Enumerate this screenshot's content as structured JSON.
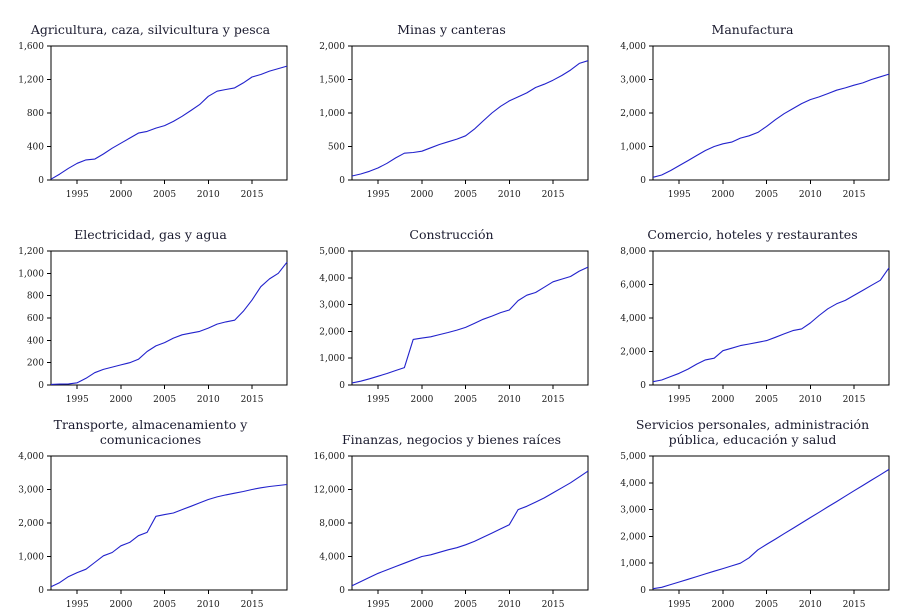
{
  "style": {
    "line_color": "#2222cc",
    "axis_color": "#000000",
    "tick_label_color": "#1a1a1a",
    "background": "#ffffff"
  },
  "chart_data": [
    {
      "type": "line",
      "title": "Agricultura, caza, silvicultura y pesca",
      "x": [
        1992,
        1993,
        1994,
        1995,
        1996,
        1997,
        1998,
        1999,
        2000,
        2001,
        2002,
        2003,
        2004,
        2005,
        2006,
        2007,
        2008,
        2009,
        2010,
        2011,
        2012,
        2013,
        2014,
        2015,
        2016,
        2017,
        2018,
        2019
      ],
      "values": [
        10,
        70,
        140,
        200,
        240,
        250,
        310,
        380,
        440,
        500,
        560,
        580,
        620,
        650,
        700,
        760,
        830,
        900,
        1000,
        1060,
        1080,
        1100,
        1160,
        1230,
        1260,
        1300,
        1330,
        1360
      ],
      "ylim": [
        0,
        1600
      ],
      "yticks": [
        0,
        400,
        800,
        1200,
        1600
      ],
      "xticks": [
        1995,
        2000,
        2005,
        2010,
        2015
      ]
    },
    {
      "type": "line",
      "title": "Minas y canteras",
      "x": [
        1992,
        1993,
        1994,
        1995,
        1996,
        1997,
        1998,
        1999,
        2000,
        2001,
        2002,
        2003,
        2004,
        2005,
        2006,
        2007,
        2008,
        2009,
        2010,
        2011,
        2012,
        2013,
        2014,
        2015,
        2016,
        2017,
        2018,
        2019
      ],
      "values": [
        60,
        90,
        130,
        180,
        250,
        330,
        400,
        410,
        430,
        480,
        530,
        570,
        610,
        660,
        760,
        880,
        1000,
        1100,
        1180,
        1240,
        1300,
        1380,
        1430,
        1490,
        1560,
        1640,
        1740,
        1780
      ],
      "ylim": [
        0,
        2000
      ],
      "yticks": [
        0,
        500,
        1000,
        1500,
        2000
      ],
      "xticks": [
        1995,
        2000,
        2005,
        2010,
        2015
      ]
    },
    {
      "type": "line",
      "title": "Manufactura",
      "x": [
        1992,
        1993,
        1994,
        1995,
        1996,
        1997,
        1998,
        1999,
        2000,
        2001,
        2002,
        2003,
        2004,
        2005,
        2006,
        2007,
        2008,
        2009,
        2010,
        2011,
        2012,
        2013,
        2014,
        2015,
        2016,
        2017,
        2018,
        2019
      ],
      "values": [
        80,
        150,
        280,
        430,
        580,
        730,
        880,
        1000,
        1080,
        1130,
        1250,
        1320,
        1420,
        1600,
        1800,
        1980,
        2130,
        2280,
        2400,
        2480,
        2580,
        2680,
        2750,
        2830,
        2900,
        3000,
        3080,
        3160
      ],
      "ylim": [
        0,
        4000
      ],
      "yticks": [
        0,
        1000,
        2000,
        3000,
        4000
      ],
      "xticks": [
        1995,
        2000,
        2005,
        2010,
        2015
      ]
    },
    {
      "type": "line",
      "title": "Electricidad, gas y agua",
      "x": [
        1992,
        1993,
        1994,
        1995,
        1996,
        1997,
        1998,
        1999,
        2000,
        2001,
        2002,
        2003,
        2004,
        2005,
        2006,
        2007,
        2008,
        2009,
        2010,
        2011,
        2012,
        2013,
        2014,
        2015,
        2016,
        2017,
        2018,
        2019
      ],
      "values": [
        5,
        8,
        10,
        20,
        60,
        110,
        140,
        160,
        180,
        200,
        230,
        300,
        350,
        380,
        420,
        450,
        465,
        480,
        510,
        545,
        565,
        580,
        660,
        760,
        880,
        950,
        1000,
        1100
      ],
      "ylim": [
        0,
        1200
      ],
      "yticks": [
        0,
        200,
        400,
        600,
        800,
        1000,
        1200
      ],
      "xticks": [
        1995,
        2000,
        2005,
        2010,
        2015
      ]
    },
    {
      "type": "line",
      "title": "Construcción",
      "x": [
        1992,
        1993,
        1994,
        1995,
        1996,
        1997,
        1998,
        1999,
        2000,
        2001,
        2002,
        2003,
        2004,
        2005,
        2006,
        2007,
        2008,
        2009,
        2010,
        2011,
        2012,
        2013,
        2014,
        2015,
        2016,
        2017,
        2018,
        2019
      ],
      "values": [
        80,
        140,
        230,
        330,
        430,
        540,
        650,
        1700,
        1750,
        1800,
        1880,
        1960,
        2050,
        2150,
        2300,
        2450,
        2570,
        2700,
        2800,
        3150,
        3350,
        3450,
        3650,
        3850,
        3950,
        4050,
        4250,
        4400
      ],
      "ylim": [
        0,
        5000
      ],
      "yticks": [
        0,
        1000,
        2000,
        3000,
        4000,
        5000
      ],
      "xticks": [
        1995,
        2000,
        2005,
        2010,
        2015
      ]
    },
    {
      "type": "line",
      "title": "Comercio, hoteles y restaurantes",
      "x": [
        1992,
        1993,
        1994,
        1995,
        1996,
        1997,
        1998,
        1999,
        2000,
        2001,
        2002,
        2003,
        2004,
        2005,
        2006,
        2007,
        2008,
        2009,
        2010,
        2011,
        2012,
        2013,
        2014,
        2015,
        2016,
        2017,
        2018,
        2019
      ],
      "values": [
        200,
        300,
        500,
        700,
        950,
        1250,
        1500,
        1600,
        2050,
        2200,
        2350,
        2450,
        2550,
        2650,
        2850,
        3050,
        3250,
        3350,
        3700,
        4150,
        4550,
        4850,
        5050,
        5350,
        5650,
        5950,
        6250,
        7000
      ],
      "ylim": [
        0,
        8000
      ],
      "yticks": [
        0,
        2000,
        4000,
        6000,
        8000
      ],
      "xticks": [
        1995,
        2000,
        2005,
        2010,
        2015
      ]
    },
    {
      "type": "line",
      "title": "Transporte, almacenamiento y comunicaciones",
      "x": [
        1992,
        1993,
        1994,
        1995,
        1996,
        1997,
        1998,
        1999,
        2000,
        2001,
        2002,
        2003,
        2004,
        2005,
        2006,
        2007,
        2008,
        2009,
        2010,
        2011,
        2012,
        2013,
        2014,
        2015,
        2016,
        2017,
        2018,
        2019
      ],
      "values": [
        100,
        220,
        400,
        520,
        620,
        820,
        1020,
        1120,
        1320,
        1420,
        1620,
        1720,
        2200,
        2250,
        2300,
        2400,
        2500,
        2600,
        2700,
        2780,
        2840,
        2890,
        2940,
        3000,
        3050,
        3090,
        3120,
        3150
      ],
      "ylim": [
        0,
        4000
      ],
      "yticks": [
        0,
        1000,
        2000,
        3000,
        4000
      ],
      "xticks": [
        1995,
        2000,
        2005,
        2010,
        2015
      ]
    },
    {
      "type": "line",
      "title": "Finanzas, negocios y bienes raíces",
      "x": [
        1992,
        1993,
        1994,
        1995,
        1996,
        1997,
        1998,
        1999,
        2000,
        2001,
        2002,
        2003,
        2004,
        2005,
        2006,
        2007,
        2008,
        2009,
        2010,
        2011,
        2012,
        2013,
        2014,
        2015,
        2016,
        2017,
        2018,
        2019
      ],
      "values": [
        500,
        1000,
        1500,
        2000,
        2400,
        2800,
        3200,
        3600,
        4000,
        4200,
        4500,
        4800,
        5050,
        5400,
        5800,
        6300,
        6800,
        7300,
        7800,
        9600,
        10000,
        10500,
        11000,
        11600,
        12200,
        12800,
        13500,
        14200
      ],
      "ylim": [
        0,
        16000
      ],
      "yticks": [
        0,
        4000,
        8000,
        12000,
        16000
      ],
      "xticks": [
        1995,
        2000,
        2005,
        2010,
        2015
      ]
    },
    {
      "type": "line",
      "title": "Servicios personales, administración pública, educación y salud",
      "x": [
        1992,
        1993,
        1994,
        1995,
        1996,
        1997,
        1998,
        1999,
        2000,
        2001,
        2002,
        2003,
        2004,
        2005,
        2006,
        2007,
        2008,
        2009,
        2010,
        2011,
        2012,
        2013,
        2014,
        2015,
        2016,
        2017,
        2018,
        2019
      ],
      "values": [
        50,
        100,
        200,
        300,
        400,
        500,
        600,
        700,
        800,
        900,
        1000,
        1200,
        1500,
        1700,
        1900,
        2100,
        2300,
        2500,
        2700,
        2900,
        3100,
        3300,
        3500,
        3700,
        3900,
        4100,
        4300,
        4500
      ],
      "ylim": [
        0,
        5000
      ],
      "yticks": [
        0,
        1000,
        2000,
        3000,
        4000,
        5000
      ],
      "xticks": [
        1995,
        2000,
        2005,
        2010,
        2015
      ]
    }
  ]
}
